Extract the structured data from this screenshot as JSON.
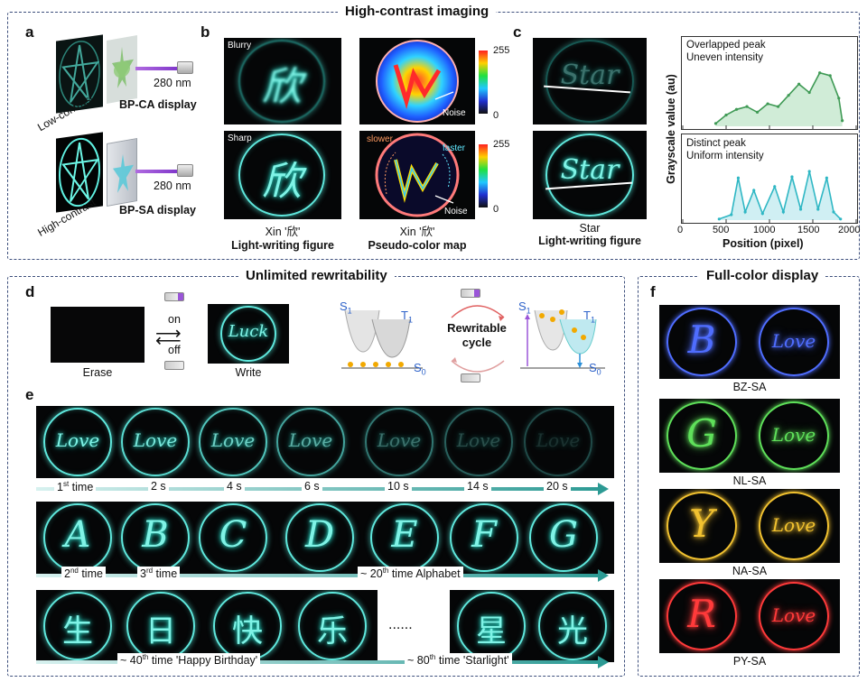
{
  "sections": {
    "top_title": "High-contrast imaging",
    "d_title": "Unlimited rewritability",
    "f_title": "Full-color display"
  },
  "panels": {
    "a": "a",
    "b": "b",
    "c": "c",
    "d": "d",
    "e": "e",
    "f": "f"
  },
  "panel_a": {
    "low_label": "Low-contrast",
    "high_label": "High-contrast",
    "wavelength_1": "280 nm",
    "wavelength_2": "280 nm",
    "display_1": "BP-CA display",
    "display_2": "BP-SA display"
  },
  "panel_b": {
    "tag_blurry": "Blurry",
    "tag_sharp": "Sharp",
    "glyph": "欣",
    "colorbar_max": "255",
    "colorbar_min": "0",
    "colorbar2_max": "255",
    "colorbar2_min": "0",
    "noise_1": "Noise",
    "noise_2": "Noise",
    "slower": "slower",
    "faster": "faster",
    "caption_1_line1": "Xin '欣'",
    "caption_1_line2": "Light-writing figure",
    "caption_2_line1": "Xin '欣'",
    "caption_2_line2": "Pseudo-color map"
  },
  "panel_c": {
    "word": "Star",
    "caption_line1": "Star",
    "caption_line2": "Light-writing figure",
    "top_note_1": "Overlapped peak",
    "top_note_2": "Uneven intensity",
    "bottom_note_1": "Distinct peak",
    "bottom_note_2": "Uniform intensity",
    "ylabel": "Grayscale value (au)",
    "xlabel": "Position (pixel)",
    "xticks": [
      "0",
      "500",
      "1000",
      "1500",
      "2000"
    ]
  },
  "chart_data": [
    {
      "type": "line",
      "title": "",
      "notes": [
        "Overlapped peak",
        "Uneven intensity"
      ],
      "xlabel": "Position (pixel)",
      "ylabel": "Grayscale value (au)",
      "xlim": [
        0,
        2000
      ],
      "x": [
        380,
        500,
        620,
        740,
        860,
        980,
        1100,
        1220,
        1340,
        1460,
        1580,
        1700,
        1800,
        1840
      ],
      "series": [
        {
          "values": [
            0.05,
            0.2,
            0.3,
            0.35,
            0.25,
            0.4,
            0.35,
            0.55,
            0.75,
            0.6,
            0.95,
            0.9,
            0.5,
            0.1
          ]
        }
      ]
    },
    {
      "type": "line",
      "title": "",
      "notes": [
        "Distinct peak",
        "Uniform intensity"
      ],
      "xlabel": "Position (pixel)",
      "ylabel": "Grayscale value (au)",
      "xlim": [
        0,
        2000
      ],
      "x": [
        420,
        560,
        640,
        720,
        820,
        920,
        1060,
        1160,
        1260,
        1360,
        1460,
        1560,
        1660,
        1740,
        1820
      ],
      "series": [
        {
          "values": [
            0.02,
            0.1,
            0.78,
            0.15,
            0.55,
            0.12,
            0.62,
            0.15,
            0.8,
            0.2,
            0.9,
            0.2,
            0.78,
            0.15,
            0.02
          ]
        }
      ]
    }
  ],
  "panel_d": {
    "on": "on",
    "off": "off",
    "erase_caption": "Erase",
    "write_caption": "Write",
    "write_word": "Luck",
    "cycle_line1": "Rewritable",
    "cycle_line2": "cycle",
    "s1": "S",
    "t1": "T",
    "s0": "S",
    "sub1": "1",
    "sub0": "0"
  },
  "panel_e": {
    "row1_word": "Love",
    "row1_labels": [
      {
        "main": "1",
        "sup": "st",
        "rest": " time"
      },
      {
        "main": "2 s",
        "sup": "",
        "rest": ""
      },
      {
        "main": "4 s",
        "sup": "",
        "rest": ""
      },
      {
        "main": "6 s",
        "sup": "",
        "rest": ""
      },
      {
        "main": "10 s",
        "sup": "",
        "rest": ""
      },
      {
        "main": "14 s",
        "sup": "",
        "rest": ""
      },
      {
        "main": "20 s",
        "sup": "",
        "rest": ""
      }
    ],
    "row2_letters": [
      "A",
      "B",
      "C",
      "D",
      "E",
      "F",
      "G"
    ],
    "row2_label_1": "2",
    "row2_label_1_sup": "nd",
    "row2_label_1_rest": " time",
    "row2_label_2": "3",
    "row2_label_2_sup": "rd",
    "row2_label_2_rest": " time",
    "row2_label_3": "~ 20",
    "row2_label_3_sup": "th",
    "row2_label_3_rest": " time Alphabet",
    "row3_chars": [
      "生",
      "日",
      "快",
      "乐",
      "星",
      "光"
    ],
    "row3_ellipsis": "......",
    "row3_label_1": "~ 40",
    "row3_label_1_sup": "th",
    "row3_label_1_rest": " time 'Happy Birthday'",
    "row3_label_2": "~ 80",
    "row3_label_2_sup": "th",
    "row3_label_2_rest": " time 'Starlight'"
  },
  "panel_f": {
    "rows": [
      {
        "letter": "B",
        "word": "Love",
        "label": "BZ-SA",
        "color": "#4f6dff"
      },
      {
        "letter": "G",
        "word": "Love",
        "label": "NL-SA",
        "color": "#5fe05a"
      },
      {
        "letter": "Y",
        "word": "Love",
        "label": "NA-SA",
        "color": "#f2c230"
      },
      {
        "letter": "R",
        "word": "Love",
        "label": "PY-SA",
        "color": "#ff3a3a"
      }
    ]
  },
  "colors": {
    "cyan": "#3cc9c0",
    "teal": "#1f9c96",
    "frame": "#3d4f7c"
  }
}
